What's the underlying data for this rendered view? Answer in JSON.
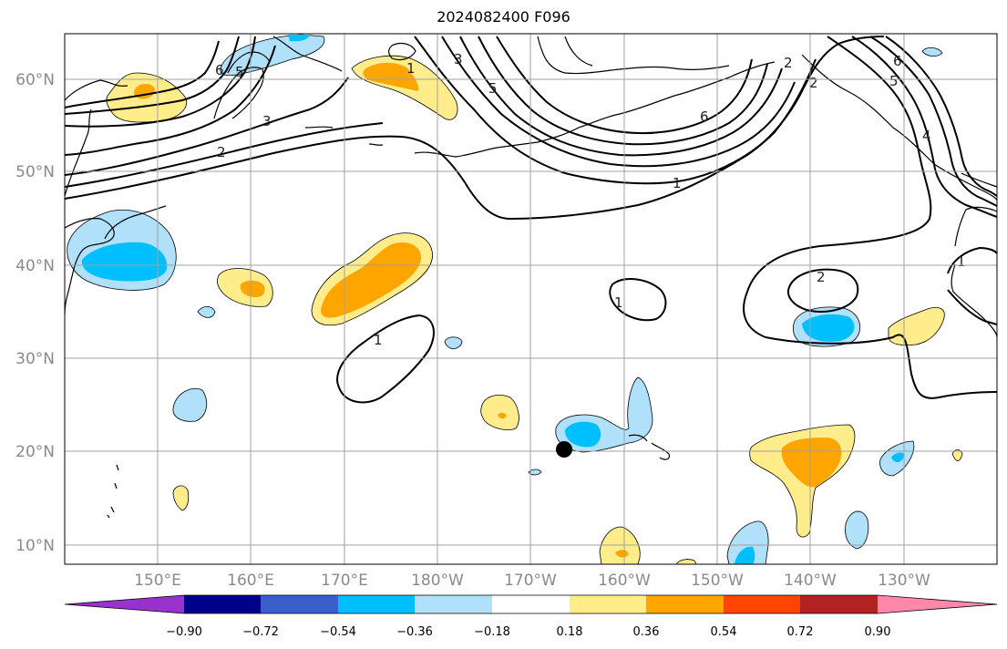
{
  "title": "2024082400 F096",
  "lat_labels": [
    "10°N",
    "20°N",
    "30°N",
    "40°N",
    "50°N",
    "60°N"
  ],
  "lon_labels": [
    "150°E",
    "160°E",
    "170°E",
    "180°W",
    "170°W",
    "160°W",
    "150°W",
    "140°W",
    "130°W"
  ],
  "colorbar": {
    "ticks": [
      "−0.90",
      "−0.72",
      "−0.54",
      "−0.36",
      "−0.18",
      "0.18",
      "0.36",
      "0.54",
      "0.72",
      "0.90"
    ],
    "colors": [
      "#9932cc",
      "#00008b",
      "#3a5fcd",
      "#00bfff",
      "#b0e0fa",
      "#ffffff",
      "#ffec8b",
      "#ffa500",
      "#ff4500",
      "#b22222",
      "#ff88aa"
    ]
  },
  "contour_labels": [
    "6",
    "5",
    "3",
    "2",
    "1",
    "3",
    "5",
    "2",
    "6",
    "1",
    "1",
    "2",
    "1",
    "2",
    "6",
    "5",
    "4",
    "1"
  ],
  "map": {
    "region": "North Pacific",
    "lat_range": [
      8,
      65
    ],
    "lon_range": [
      "140°E",
      "117°W"
    ],
    "marker": {
      "lon": "166°W",
      "lat": "20°N",
      "icon": "filled-circle"
    }
  }
}
